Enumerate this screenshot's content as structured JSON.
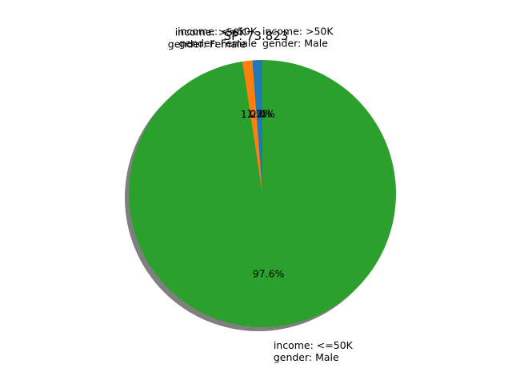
{
  "chart_data": {
    "type": "pie",
    "title": "SP: 73.823",
    "start_angle_deg": 90,
    "counterclock": true,
    "shadow": true,
    "slices": [
      {
        "label_lines": [
          "income: <=50K",
          "gender: Female"
        ],
        "value": 1.2,
        "pct_text": "1.2%",
        "color": "#1f77b4"
      },
      {
        "label_lines": [
          "income: >50K",
          "gender: Female"
        ],
        "value": 1.2,
        "pct_text": "1.2%",
        "color": "#ff7f0e"
      },
      {
        "label_lines": [
          "income: <=50K",
          "gender: Male"
        ],
        "value": 97.6,
        "pct_text": "97.6%",
        "color": "#2ca02c"
      },
      {
        "label_lines": [
          "income: >50K",
          "gender: Male"
        ],
        "value": 0.0,
        "pct_text": "0.0%",
        "color": "#d62728"
      }
    ]
  }
}
